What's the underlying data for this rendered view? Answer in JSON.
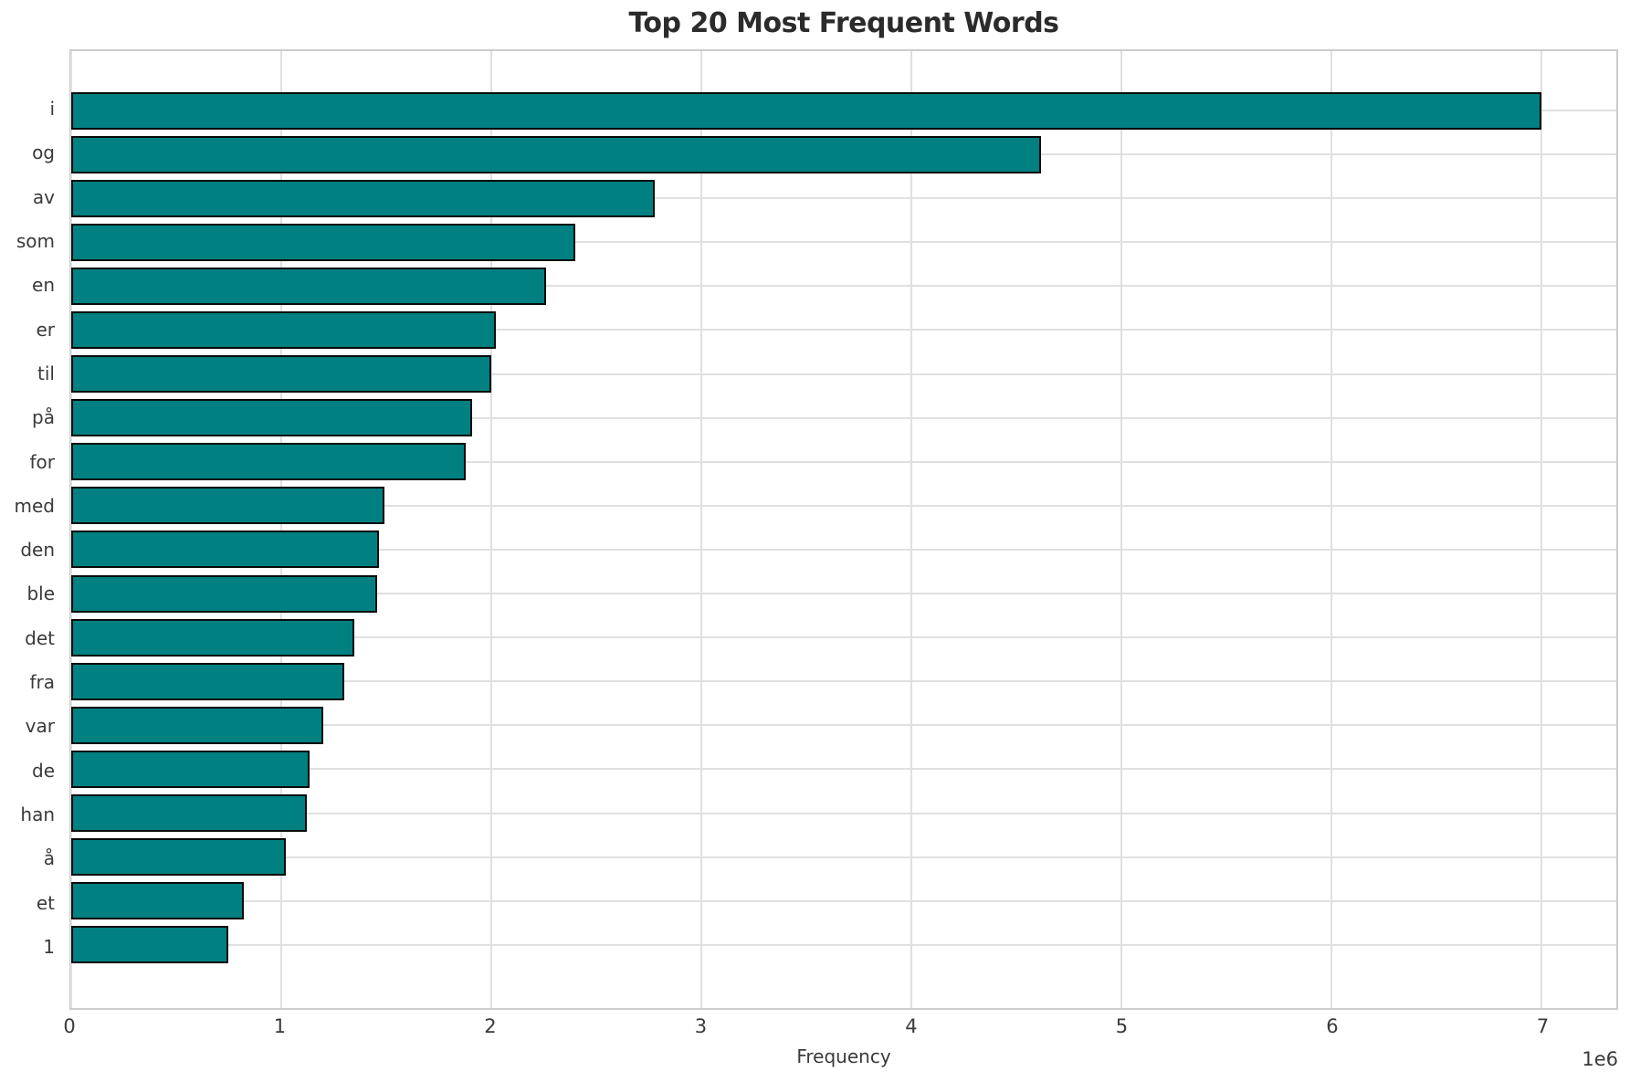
{
  "chart_data": {
    "type": "bar",
    "orientation": "horizontal",
    "title": "Top 20 Most Frequent Words",
    "xlabel": "Frequency",
    "ylabel": "",
    "offset_label": "1e6",
    "categories": [
      "i",
      "og",
      "av",
      "som",
      "en",
      "er",
      "til",
      "på",
      "for",
      "med",
      "den",
      "ble",
      "det",
      "fra",
      "var",
      "de",
      "han",
      "å",
      "et",
      "1"
    ],
    "values": [
      7000000,
      4620000,
      2780000,
      2400000,
      2260000,
      2020000,
      2000000,
      1910000,
      1880000,
      1490000,
      1465000,
      1455000,
      1350000,
      1300000,
      1200000,
      1135000,
      1120000,
      1020000,
      820000,
      750000
    ],
    "x_ticks": [
      0,
      1000000,
      2000000,
      3000000,
      4000000,
      5000000,
      6000000,
      7000000
    ],
    "x_tick_labels": [
      "0",
      "1",
      "2",
      "3",
      "4",
      "5",
      "6",
      "7"
    ],
    "xlim": [
      0,
      7358000
    ],
    "grid": true,
    "legend": "none",
    "bar_color": "#008080",
    "bar_edge_color": "#0a0a0a",
    "grid_color": "#e0e0e0",
    "text_color": "#3a3a3a",
    "title_color": "#2b2b2b"
  }
}
